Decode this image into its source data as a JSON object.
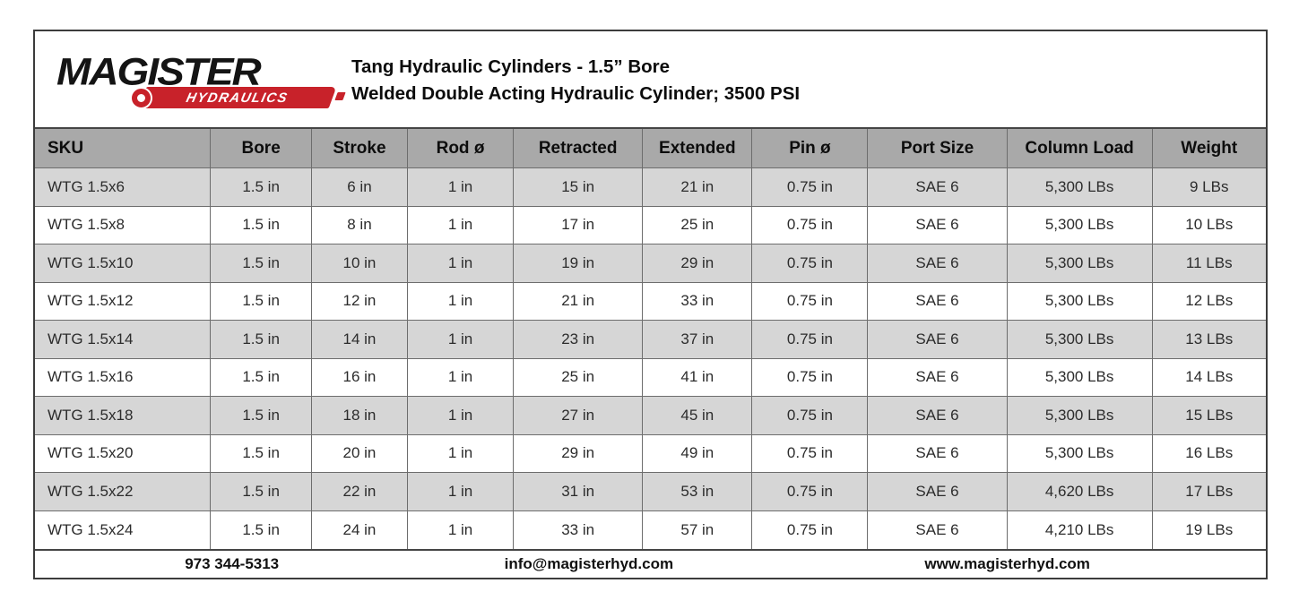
{
  "brand": {
    "name": "MAGISTER",
    "sub": "HYDRAULICS",
    "accent_red": "#c8222a",
    "wordmark_black": "#141414"
  },
  "header": {
    "title_line1": "Tang Hydraulic Cylinders - 1.5” Bore",
    "title_line2": "Welded Double Acting Hydraulic Cylinder; 3500 PSI"
  },
  "table": {
    "columns": [
      "SKU",
      "Bore",
      "Stroke",
      "Rod ø",
      "Retracted",
      "Extended",
      "Pin ø",
      "Port Size",
      "Column Load",
      "Weight"
    ],
    "rows": [
      [
        "WTG 1.5x6",
        "1.5 in",
        "6 in",
        "1 in",
        "15 in",
        "21 in",
        "0.75 in",
        "SAE 6",
        "5,300 LBs",
        "9 LBs"
      ],
      [
        "WTG 1.5x8",
        "1.5 in",
        "8 in",
        "1 in",
        "17 in",
        "25 in",
        "0.75 in",
        "SAE 6",
        "5,300 LBs",
        "10 LBs"
      ],
      [
        "WTG 1.5x10",
        "1.5 in",
        "10 in",
        "1 in",
        "19 in",
        "29 in",
        "0.75 in",
        "SAE 6",
        "5,300 LBs",
        "11 LBs"
      ],
      [
        "WTG 1.5x12",
        "1.5 in",
        "12 in",
        "1 in",
        "21 in",
        "33 in",
        "0.75 in",
        "SAE 6",
        "5,300 LBs",
        "12 LBs"
      ],
      [
        "WTG 1.5x14",
        "1.5 in",
        "14 in",
        "1 in",
        "23 in",
        "37 in",
        "0.75 in",
        "SAE 6",
        "5,300 LBs",
        "13 LBs"
      ],
      [
        "WTG 1.5x16",
        "1.5 in",
        "16 in",
        "1 in",
        "25 in",
        "41 in",
        "0.75 in",
        "SAE 6",
        "5,300 LBs",
        "14 LBs"
      ],
      [
        "WTG 1.5x18",
        "1.5 in",
        "18 in",
        "1 in",
        "27 in",
        "45 in",
        "0.75 in",
        "SAE 6",
        "5,300 LBs",
        "15 LBs"
      ],
      [
        "WTG 1.5x20",
        "1.5 in",
        "20 in",
        "1 in",
        "29 in",
        "49 in",
        "0.75 in",
        "SAE 6",
        "5,300 LBs",
        "16 LBs"
      ],
      [
        "WTG 1.5x22",
        "1.5 in",
        "22 in",
        "1 in",
        "31 in",
        "53 in",
        "0.75 in",
        "SAE 6",
        "4,620 LBs",
        "17 LBs"
      ],
      [
        "WTG 1.5x24",
        "1.5 in",
        "24 in",
        "1 in",
        "33 in",
        "57 in",
        "0.75 in",
        "SAE 6",
        "4,210 LBs",
        "19 LBs"
      ]
    ]
  },
  "footer": {
    "phone": "973 344-5313",
    "email": "info@magisterhyd.com",
    "website": "www.magisterhyd.com"
  },
  "colors": {
    "table_header_bg": "#a9a9a9",
    "row_stripe_bg": "#d6d6d6",
    "row_bg": "#ffffff",
    "grid_line": "#6d6d6d",
    "outer_border": "#3c3c3c"
  }
}
